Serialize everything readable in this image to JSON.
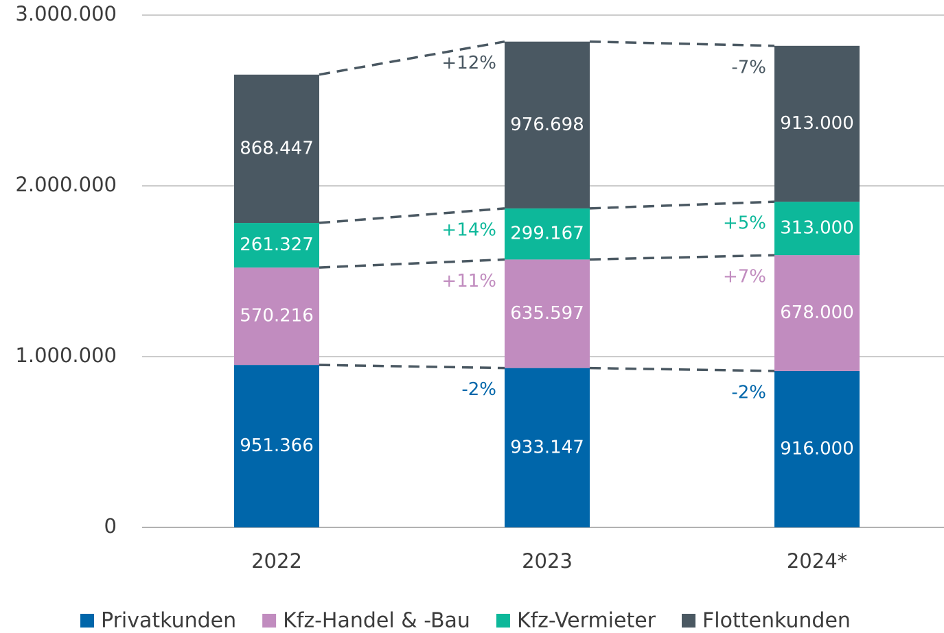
{
  "chart_data": {
    "type": "bar",
    "stacked": true,
    "categories": [
      "2022",
      "2023",
      "2024*"
    ],
    "ylim": [
      0,
      3000000
    ],
    "yticks": [
      0,
      {
        "value": 1000000,
        "label": "1.000.000"
      },
      {
        "value": 2000000,
        "label": "2.000.000"
      },
      {
        "value": 3000000,
        "label": "3.000.000"
      }
    ],
    "grid": true,
    "series": [
      {
        "name": "Privatkunden",
        "color": "#0066aa",
        "values": [
          951366,
          933147,
          916000
        ],
        "value_labels": [
          "951.366",
          "933.147",
          "916.000"
        ],
        "change_labels": [
          null,
          "-2%",
          "-2%"
        ],
        "change_color": "#0066aa"
      },
      {
        "name": "Kfz-Handel & -Bau",
        "color": "#c18cbf",
        "values": [
          570216,
          635597,
          678000
        ],
        "value_labels": [
          "570.216",
          "635.597",
          "678.000"
        ],
        "change_labels": [
          null,
          "+11%",
          "+7%"
        ],
        "change_color": "#c18cbf"
      },
      {
        "name": "Kfz-Vermieter",
        "color": "#0db89a",
        "values": [
          261327,
          299167,
          313000
        ],
        "value_labels": [
          "261.327",
          "299.167",
          "313.000"
        ],
        "change_labels": [
          null,
          "+14%",
          "+5%"
        ],
        "change_color": "#0db89a"
      },
      {
        "name": "Flottenkunden",
        "color": "#4a5862",
        "values": [
          868447,
          976698,
          913000
        ],
        "value_labels": [
          "868.447",
          "976.698",
          "913.000"
        ],
        "change_labels": [
          null,
          "+12%",
          "-7%"
        ],
        "change_color": "#4a5862"
      }
    ]
  }
}
